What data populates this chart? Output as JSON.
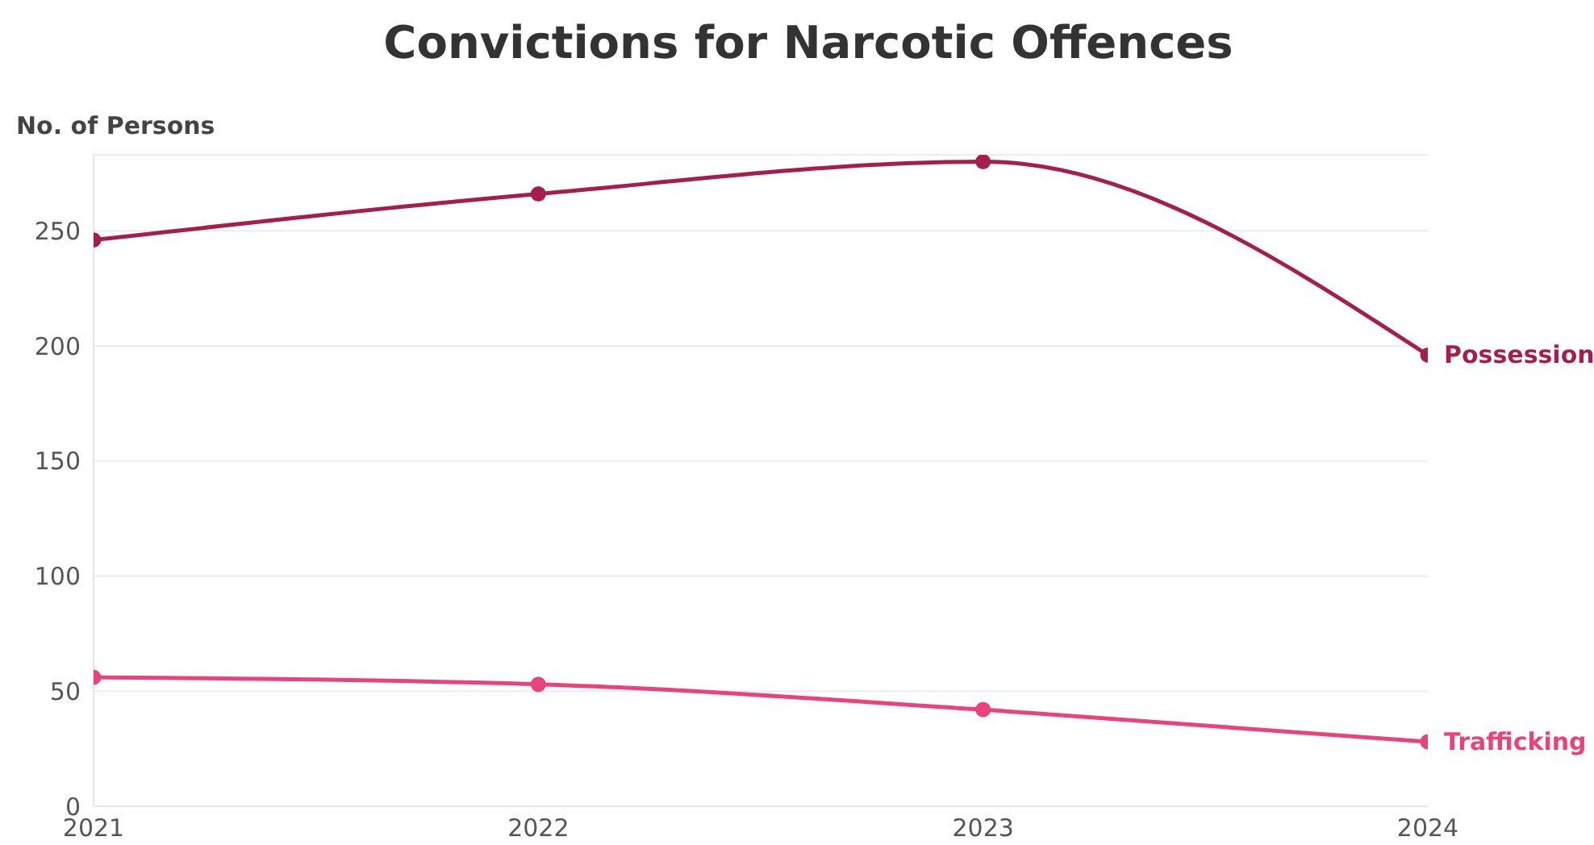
{
  "chart_data": {
    "type": "line",
    "title": "Convictions for Narcotic Offences",
    "ylabel": "No. of Persons",
    "x": [
      2021,
      2022,
      2023,
      2024
    ],
    "series": [
      {
        "name": "Possession",
        "color": "#a51f4d",
        "values": [
          246,
          266,
          280,
          196
        ]
      },
      {
        "name": "Trafficking",
        "color": "#e8437a",
        "values": [
          56,
          53,
          42,
          28
        ]
      }
    ],
    "xlim": [
      2021,
      2024
    ],
    "xticks": [
      2021,
      2022,
      2023,
      2024
    ],
    "ylim": [
      0,
      283
    ],
    "yticks": [
      0,
      50,
      100,
      150,
      200,
      250
    ],
    "grid": "y",
    "marker": "circle",
    "line_style": "solid"
  }
}
